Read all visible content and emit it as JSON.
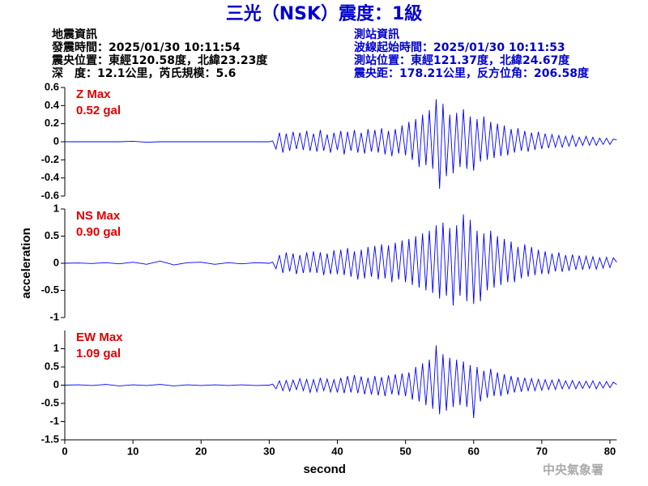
{
  "header": {
    "title": "三光（NSK）震度：1級",
    "event": [
      "地震資訊",
      "發震時間：2025/01/30 10:11:54",
      "震央位置：東經120.58度，北緯23.23度",
      "深　度：12.1公里，芮氏規模：5.6"
    ],
    "station": [
      "測站資訊",
      "波線起始時間：2025/01/30 10:11:53",
      "測站位置：東經121.37度，北緯24.67度",
      "震央距：178.21公里，反方位角：206.58度"
    ]
  },
  "footer": "中央氣象署",
  "chart_data": [
    {
      "type": "line",
      "annotations": [
        "Z Max",
        "0.52 gal"
      ],
      "color": "#0000ff",
      "xlim": [
        0,
        81
      ],
      "ylim": [
        -0.6,
        0.6
      ],
      "yticks": [
        -0.6,
        -0.4,
        -0.2,
        0,
        0.2,
        0.4,
        0.6
      ],
      "x": [
        0,
        2,
        4,
        6,
        8,
        10,
        12,
        14,
        16,
        18,
        20,
        22,
        24,
        26,
        28,
        30,
        30.5,
        31,
        31.5,
        32,
        32.5,
        33,
        33.5,
        34,
        34.5,
        35,
        35.5,
        36,
        36.5,
        37,
        37.5,
        38,
        38.5,
        39,
        39.5,
        40,
        40.5,
        41,
        41.5,
        42,
        42.5,
        43,
        43.5,
        44,
        44.5,
        45,
        45.5,
        46,
        46.5,
        47,
        47.5,
        48,
        48.5,
        49,
        49.5,
        50,
        50.5,
        51,
        51.5,
        52,
        52.5,
        53,
        53.5,
        54,
        54.5,
        55,
        55.5,
        56,
        56.5,
        57,
        57.5,
        58,
        58.5,
        59,
        59.5,
        60,
        60.5,
        61,
        61.5,
        62,
        62.5,
        63,
        63.5,
        64,
        64.5,
        65,
        65.5,
        66,
        66.5,
        67,
        67.5,
        68,
        68.5,
        69,
        69.5,
        70,
        70.5,
        71,
        71.5,
        72,
        72.5,
        73,
        73.5,
        74,
        74.5,
        75,
        75.5,
        76,
        76.5,
        77,
        77.5,
        78,
        78.5,
        79,
        79.5,
        80,
        80.5,
        81
      ],
      "values": [
        0,
        0,
        0,
        0,
        0,
        0.005,
        -0.005,
        0,
        0,
        0,
        0,
        0,
        0,
        0,
        0,
        0,
        0.01,
        -0.08,
        0.1,
        -0.12,
        0.09,
        -0.1,
        0.11,
        -0.08,
        0.1,
        -0.09,
        0.12,
        -0.1,
        0.09,
        -0.11,
        0.13,
        -0.1,
        0.08,
        -0.12,
        0.1,
        -0.09,
        0.12,
        -0.14,
        0.11,
        -0.1,
        0.13,
        -0.12,
        0.1,
        -0.13,
        0.14,
        -0.11,
        0.13,
        -0.12,
        0.15,
        -0.14,
        0.12,
        -0.16,
        0.14,
        -0.13,
        0.18,
        -0.15,
        0.22,
        -0.2,
        0.25,
        -0.28,
        0.3,
        -0.26,
        0.35,
        -0.3,
        0.47,
        -0.52,
        0.42,
        -0.38,
        0.3,
        -0.35,
        0.32,
        -0.28,
        0.36,
        -0.3,
        0.28,
        -0.32,
        0.25,
        -0.22,
        0.28,
        -0.2,
        0.22,
        -0.18,
        0.2,
        -0.16,
        0.18,
        -0.15,
        0.14,
        -0.12,
        0.15,
        -0.1,
        0.12,
        -0.11,
        0.1,
        -0.09,
        0.11,
        -0.08,
        0.09,
        -0.07,
        0.08,
        -0.06,
        0.07,
        -0.06,
        0.06,
        -0.05,
        0.07,
        -0.05,
        0.05,
        -0.04,
        0.06,
        -0.04,
        0.05,
        -0.04,
        0.04,
        -0.03,
        0.04,
        -0.03,
        0.03,
        0.02
      ]
    },
    {
      "type": "line",
      "annotations": [
        "NS Max",
        "0.90 gal"
      ],
      "color": "#0000ff",
      "y_label": "acceleration",
      "xlim": [
        0,
        81
      ],
      "ylim": [
        -1,
        1
      ],
      "yticks": [
        -1,
        -0.5,
        0,
        0.5,
        1
      ],
      "x": [
        0,
        2,
        4,
        6,
        8,
        10,
        12,
        14,
        16,
        18,
        20,
        22,
        24,
        26,
        28,
        30,
        30.5,
        31,
        31.5,
        32,
        32.5,
        33,
        33.5,
        34,
        34.5,
        35,
        35.5,
        36,
        36.5,
        37,
        37.5,
        38,
        38.5,
        39,
        39.5,
        40,
        40.5,
        41,
        41.5,
        42,
        42.5,
        43,
        43.5,
        44,
        44.5,
        45,
        45.5,
        46,
        46.5,
        47,
        47.5,
        48,
        48.5,
        49,
        49.5,
        50,
        50.5,
        51,
        51.5,
        52,
        52.5,
        53,
        53.5,
        54,
        54.5,
        55,
        55.5,
        56,
        56.5,
        57,
        57.5,
        58,
        58.5,
        59,
        59.5,
        60,
        60.5,
        61,
        61.5,
        62,
        62.5,
        63,
        63.5,
        64,
        64.5,
        65,
        65.5,
        66,
        66.5,
        67,
        67.5,
        68,
        68.5,
        69,
        69.5,
        70,
        70.5,
        71,
        71.5,
        72,
        72.5,
        73,
        73.5,
        74,
        74.5,
        75,
        75.5,
        76,
        76.5,
        77,
        77.5,
        78,
        78.5,
        79,
        79.5,
        80,
        80.5,
        81
      ],
      "values": [
        0,
        0.005,
        -0.005,
        0.01,
        -0.01,
        0.02,
        -0.02,
        0.04,
        -0.03,
        0.01,
        0.02,
        -0.02,
        0.01,
        -0.01,
        0.01,
        0,
        0.02,
        -0.1,
        0.15,
        -0.18,
        0.2,
        -0.15,
        0.18,
        -0.2,
        0.15,
        -0.18,
        0.2,
        -0.17,
        0.22,
        -0.18,
        0.2,
        -0.22,
        0.18,
        -0.2,
        0.24,
        -0.2,
        0.25,
        -0.22,
        0.28,
        -0.25,
        0.22,
        -0.3,
        0.25,
        -0.28,
        0.3,
        -0.25,
        0.32,
        -0.3,
        0.35,
        -0.28,
        0.33,
        -0.35,
        0.38,
        -0.3,
        0.42,
        -0.35,
        0.45,
        -0.4,
        0.5,
        -0.45,
        0.55,
        -0.5,
        0.6,
        -0.55,
        0.7,
        -0.65,
        0.75,
        -0.6,
        0.65,
        -0.78,
        0.7,
        -0.6,
        0.9,
        -0.7,
        0.8,
        -0.75,
        0.6,
        -0.7,
        0.55,
        -0.5,
        0.6,
        -0.45,
        0.5,
        -0.4,
        0.45,
        -0.35,
        0.4,
        -0.35,
        0.3,
        -0.28,
        0.35,
        -0.25,
        0.3,
        -0.22,
        0.25,
        -0.2,
        0.22,
        -0.2,
        0.18,
        -0.15,
        0.2,
        -0.16,
        0.15,
        -0.14,
        0.16,
        -0.12,
        0.14,
        -0.12,
        0.13,
        -0.1,
        0.12,
        -0.11,
        0.1,
        -0.09,
        0.11,
        -0.08,
        0.1,
        0.02
      ]
    },
    {
      "type": "line",
      "annotations": [
        "EW Max",
        "1.09 gal"
      ],
      "color": "#0000ff",
      "x_label": "second",
      "xlim": [
        0,
        81
      ],
      "xticks": [
        0,
        10,
        20,
        30,
        40,
        50,
        60,
        70,
        80
      ],
      "ylim": [
        -1.5,
        1.5
      ],
      "yticks": [
        -1.5,
        -1,
        -0.5,
        0,
        0.5,
        1
      ],
      "x": [
        0,
        2,
        4,
        6,
        8,
        10,
        12,
        14,
        16,
        18,
        20,
        22,
        24,
        26,
        28,
        30,
        30.5,
        31,
        31.5,
        32,
        32.5,
        33,
        33.5,
        34,
        34.5,
        35,
        35.5,
        36,
        36.5,
        37,
        37.5,
        38,
        38.5,
        39,
        39.5,
        40,
        40.5,
        41,
        41.5,
        42,
        42.5,
        43,
        43.5,
        44,
        44.5,
        45,
        45.5,
        46,
        46.5,
        47,
        47.5,
        48,
        48.5,
        49,
        49.5,
        50,
        50.5,
        51,
        51.5,
        52,
        52.5,
        53,
        53.5,
        54,
        54.5,
        55,
        55.5,
        56,
        56.5,
        57,
        57.5,
        58,
        58.5,
        59,
        59.5,
        60,
        60.5,
        61,
        61.5,
        62,
        62.5,
        63,
        63.5,
        64,
        64.5,
        65,
        65.5,
        66,
        66.5,
        67,
        67.5,
        68,
        68.5,
        69,
        69.5,
        70,
        70.5,
        71,
        71.5,
        72,
        72.5,
        73,
        73.5,
        74,
        74.5,
        75,
        75.5,
        76,
        76.5,
        77,
        77.5,
        78,
        78.5,
        79,
        79.5,
        80,
        80.5,
        81
      ],
      "values": [
        0,
        0.01,
        -0.01,
        0.02,
        -0.02,
        0.01,
        -0.01,
        0.02,
        -0.02,
        0.01,
        -0.01,
        0.01,
        -0.01,
        0.01,
        -0.01,
        0,
        0.03,
        -0.1,
        0.12,
        -0.15,
        0.13,
        -0.16,
        0.14,
        -0.12,
        0.18,
        -0.15,
        0.16,
        -0.2,
        0.15,
        -0.18,
        0.2,
        -0.15,
        0.17,
        -0.19,
        0.15,
        -0.2,
        0.2,
        -0.22,
        0.25,
        -0.2,
        0.28,
        -0.22,
        0.24,
        -0.25,
        0.2,
        -0.26,
        0.25,
        -0.28,
        0.22,
        -0.3,
        0.27,
        -0.25,
        0.3,
        -0.28,
        0.32,
        -0.3,
        0.35,
        -0.4,
        0.5,
        -0.45,
        0.6,
        -0.55,
        0.7,
        -0.65,
        1.09,
        -0.8,
        0.85,
        -0.7,
        0.75,
        -0.6,
        0.7,
        -0.55,
        0.65,
        -0.6,
        0.55,
        -0.9,
        0.5,
        -0.45,
        0.4,
        -0.35,
        0.45,
        -0.3,
        0.35,
        -0.3,
        0.3,
        -0.25,
        0.25,
        -0.2,
        0.22,
        -0.18,
        0.2,
        -0.15,
        0.18,
        -0.15,
        0.16,
        -0.14,
        0.15,
        -0.12,
        0.14,
        -0.12,
        0.16,
        -0.1,
        0.12,
        -0.1,
        0.13,
        -0.1,
        0.1,
        -0.09,
        0.11,
        -0.08,
        0.12,
        -0.1,
        0.09,
        -0.08,
        0.1,
        -0.07,
        0.08,
        0.02
      ]
    }
  ]
}
